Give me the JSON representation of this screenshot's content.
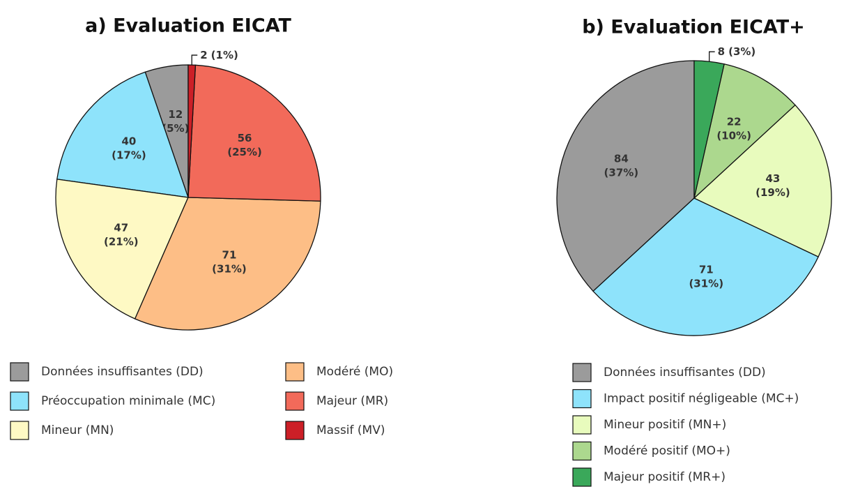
{
  "chart_data": [
    {
      "type": "pie",
      "title": "a) Evaluation EICAT",
      "legend_columns": 2,
      "categories": [
        "Données insuffisantes (DD)",
        "Préoccupation minimale (MC)",
        "Mineur (MN)",
        "Modéré (MO)",
        "Majeur (MR)",
        "Massif (MV)"
      ],
      "values": [
        12,
        40,
        47,
        71,
        56,
        2
      ],
      "percent_labels": [
        "(5%)",
        "(17%)",
        "(21%)",
        "(31%)",
        "(25%)",
        "(1%)"
      ],
      "colors": [
        "#9b9b9b",
        "#8ee3fb",
        "#fef9c4",
        "#fdbe86",
        "#f26a5a",
        "#cc1f27"
      ]
    },
    {
      "type": "pie",
      "title": "b) Evaluation EICAT+",
      "legend_columns": 1,
      "categories": [
        "Données insuffisantes (DD)",
        "Impact positif négligeable (MC+)",
        "Mineur positif (MN+)",
        "Modéré positif (MO+)",
        "Majeur positif (MR+)"
      ],
      "values": [
        84,
        71,
        43,
        22,
        8
      ],
      "percent_labels": [
        "(37%)",
        "(31%)",
        "(19%)",
        "(10%)",
        "(3%)"
      ],
      "colors": [
        "#9b9b9b",
        "#8ee3fb",
        "#e8fbbd",
        "#acd88e",
        "#3aa85a"
      ]
    }
  ]
}
